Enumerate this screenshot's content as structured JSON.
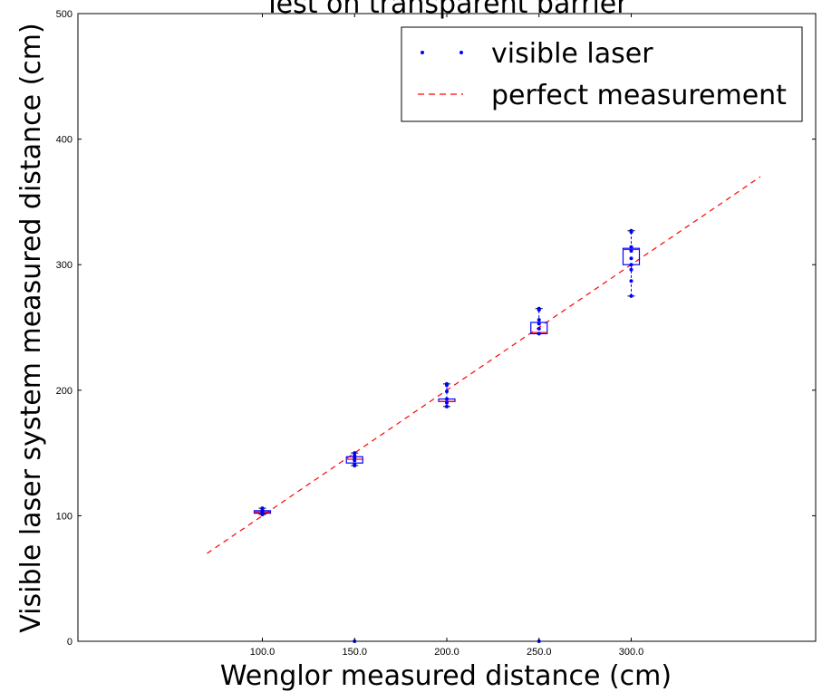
{
  "chart_data": {
    "type": "scatter",
    "title": "Test on transparent barrier",
    "xlabel": "Wenglor measured distance (cm)",
    "ylabel": "Visible laser system measured distance (cm)",
    "xlim": [
      0,
      400
    ],
    "ylim": [
      0,
      500
    ],
    "x_ticks": [
      100,
      150,
      200,
      250,
      300
    ],
    "x_tick_labels": [
      "100.0",
      "150.0",
      "200.0",
      "250.0",
      "300.0"
    ],
    "y_ticks": [
      0,
      100,
      200,
      300,
      400,
      500
    ],
    "y_tick_labels": [
      "0",
      "100",
      "200",
      "300",
      "400",
      "500"
    ],
    "grid": false,
    "legend_position": "top-right",
    "series": [
      {
        "name": "visible laser",
        "kind": "points",
        "color": "#0000ff",
        "points": [
          [
            100,
            101
          ],
          [
            100,
            103
          ],
          [
            100,
            104
          ],
          [
            100,
            105
          ],
          [
            100,
            106
          ],
          [
            150,
            0
          ],
          [
            150,
            140
          ],
          [
            150,
            141
          ],
          [
            150,
            144
          ],
          [
            150,
            146
          ],
          [
            150,
            148
          ],
          [
            150,
            150
          ],
          [
            200,
            187
          ],
          [
            200,
            190
          ],
          [
            200,
            193
          ],
          [
            200,
            199
          ],
          [
            200,
            204
          ],
          [
            200,
            205
          ],
          [
            250,
            0
          ],
          [
            250,
            245
          ],
          [
            250,
            249
          ],
          [
            250,
            253
          ],
          [
            250,
            256
          ],
          [
            250,
            264
          ],
          [
            250,
            265
          ],
          [
            300,
            275
          ],
          [
            300,
            287
          ],
          [
            300,
            296
          ],
          [
            300,
            300
          ],
          [
            300,
            305
          ],
          [
            300,
            311
          ],
          [
            300,
            314
          ],
          [
            300,
            326
          ],
          [
            300,
            327
          ]
        ]
      },
      {
        "name": "perfect measurement",
        "kind": "line",
        "color": "#ff0000",
        "style": "dashed",
        "points": [
          [
            70,
            70
          ],
          [
            370,
            370
          ]
        ]
      }
    ],
    "boxplots": [
      {
        "x": 100,
        "q1": 102,
        "median": 103,
        "q3": 104,
        "whisker_low": 101,
        "whisker_high": 106
      },
      {
        "x": 150,
        "q1": 142,
        "median": 145,
        "q3": 147,
        "whisker_low": 140,
        "whisker_high": 150
      },
      {
        "x": 200,
        "q1": 191,
        "median": 191,
        "q3": 193,
        "whisker_low": 187,
        "whisker_high": 205
      },
      {
        "x": 250,
        "q1": 245,
        "median": 246,
        "q3": 254,
        "whisker_low": 245,
        "whisker_high": 265
      },
      {
        "x": 300,
        "q1": 300,
        "median": 312,
        "q3": 313,
        "whisker_low": 275,
        "whisker_high": 327
      }
    ],
    "box_color": "#0000ff",
    "median_color": "#ff0000"
  }
}
